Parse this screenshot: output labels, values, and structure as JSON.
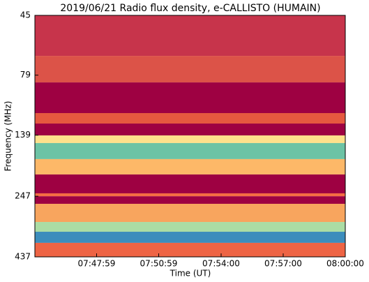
{
  "chart_data": {
    "type": "spectrogram",
    "title": "2019/06/21  Radio flux density, e-CALLISTO (HUMAIN)",
    "x_label": "Time (UT)",
    "y_label": "Frequency (MHz)",
    "xlim": [
      27900,
      28800
    ],
    "xticks": [
      {
        "value": 28079,
        "label": "07:47:59"
      },
      {
        "value": 28259,
        "label": "07:50:59"
      },
      {
        "value": 28440,
        "label": "07:54:00"
      },
      {
        "value": 28620,
        "label": "07:57:00"
      },
      {
        "value": 28800,
        "label": "08:00:00"
      }
    ],
    "ylim": [
      437,
      45
    ],
    "yscale": "log",
    "yticks": [
      45,
      79,
      139,
      247,
      437
    ],
    "bands": [
      {
        "from": 45,
        "to": 65.9,
        "color": "#c7344b"
      },
      {
        "from": 65.9,
        "to": 84.6,
        "color": "#dc5348"
      },
      {
        "from": 84.6,
        "to": 112.9,
        "color": "#9e0142"
      },
      {
        "from": 112.9,
        "to": 124.6,
        "color": "#e5593f"
      },
      {
        "from": 124.6,
        "to": 139.3,
        "color": "#9e0142"
      },
      {
        "from": 139.3,
        "to": 149.7,
        "color": "#fee08b"
      },
      {
        "from": 149.7,
        "to": 174.1,
        "color": "#6cc3a5"
      },
      {
        "from": 174.1,
        "to": 201.2,
        "color": "#fdb868"
      },
      {
        "from": 201.2,
        "to": 240.3,
        "color": "#9e0142"
      },
      {
        "from": 240.3,
        "to": 247,
        "color": "#f46d43"
      },
      {
        "from": 247,
        "to": 265.2,
        "color": "#9e0142"
      },
      {
        "from": 265.2,
        "to": 314.7,
        "color": "#f8a55e"
      },
      {
        "from": 314.7,
        "to": 345,
        "color": "#abdda4"
      },
      {
        "from": 345,
        "to": 383,
        "color": "#3c8dbc"
      },
      {
        "from": 383,
        "to": 437,
        "color": "#ee6444"
      }
    ]
  }
}
